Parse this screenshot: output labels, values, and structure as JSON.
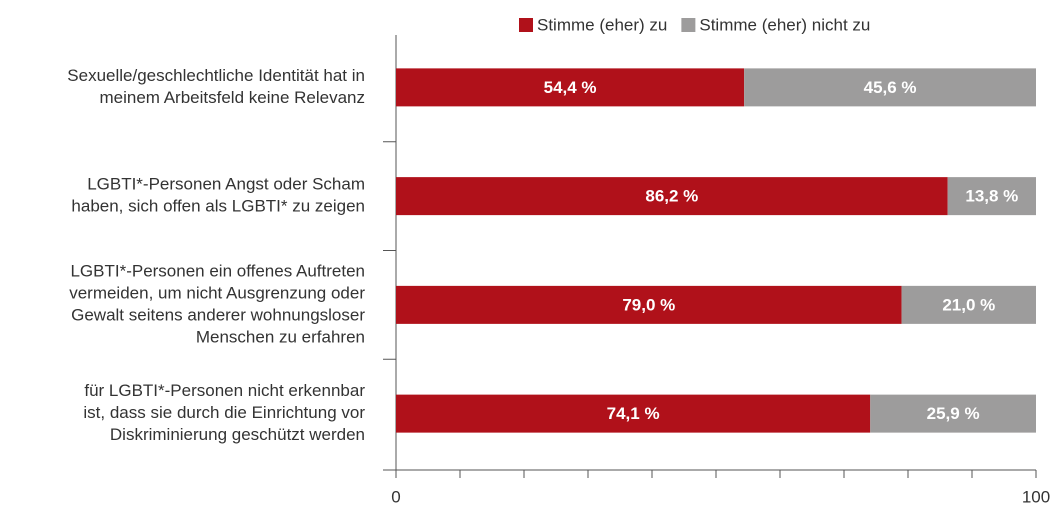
{
  "chart_data": {
    "type": "stacked_bar_horizontal",
    "categories": [
      [
        "Sexuelle/geschlechtliche Identität hat in",
        "meinem Arbeitsfeld keine Relevanz"
      ],
      [
        "LGBTI*-Personen Angst oder Scham",
        "haben, sich offen als LGBTI* zu zeigen"
      ],
      [
        "LGBTI*-Personen ein offenes Auftreten",
        "vermeiden, um nicht Ausgrenzung oder",
        "Gewalt seitens anderer wohnungsloser",
        "Menschen zu erfahren"
      ],
      [
        "für LGBTI*-Personen nicht erkennbar",
        "ist, dass sie durch die Einrichtung vor",
        "Diskriminierung geschützt werden"
      ]
    ],
    "series": [
      {
        "name": "Stimme (eher) zu",
        "color": "#b0111a",
        "values": [
          54.4,
          86.2,
          79.0,
          74.1
        ],
        "value_labels": [
          "54,4 %",
          "86,2 %",
          "79,0 %",
          "74,1 %"
        ]
      },
      {
        "name": "Stimme (eher) nicht zu",
        "color": "#9d9c9c",
        "values": [
          45.6,
          13.8,
          21.0,
          25.9
        ],
        "value_labels": [
          "45,6 %",
          "13,8 %",
          "21,0 %",
          "25,9 %"
        ]
      }
    ],
    "xlim": [
      0,
      100
    ],
    "xticks": [
      0,
      100
    ],
    "minor_xticks": [
      10,
      20,
      30,
      40,
      50,
      60,
      70,
      80,
      90
    ],
    "legend": "top"
  }
}
